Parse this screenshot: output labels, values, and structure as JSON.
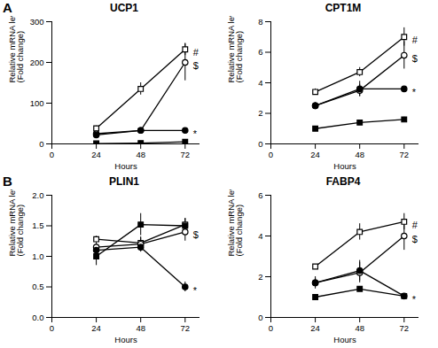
{
  "chart_data": [
    {
      "type": "line",
      "panel": "A",
      "title": "UCP1",
      "xlabel": "Hours",
      "ylabel": "Relative mRNA level\n(Fold change)",
      "x": [
        24,
        48,
        72
      ],
      "xlim": [
        0,
        80
      ],
      "xticks": [
        0,
        24,
        48,
        72
      ],
      "ylim": [
        0,
        300
      ],
      "yticks": [
        0,
        100,
        200,
        300
      ],
      "series": [
        {
          "color": "#000000",
          "marker": "open-square",
          "values": [
            38,
            135,
            232
          ],
          "errors": [
            6,
            15,
            15
          ],
          "annotation": "#"
        },
        {
          "color": "#000000",
          "marker": "open-circle",
          "values": [
            25,
            33,
            200
          ],
          "errors": [
            3,
            4,
            45
          ],
          "annotation": "$"
        },
        {
          "color": "#000000",
          "marker": "circle",
          "values": [
            22,
            33,
            33
          ],
          "errors": [
            3,
            3,
            2
          ],
          "annotation": "*"
        },
        {
          "color": "#000000",
          "marker": "square",
          "values": [
            1,
            2,
            5
          ],
          "errors": [
            0.5,
            1,
            2
          ]
        }
      ]
    },
    {
      "type": "line",
      "title": "CPT1M",
      "xlabel": "Hours",
      "ylabel": "Relative mRNA level\n(Fold change)",
      "x": [
        24,
        48,
        72
      ],
      "xlim": [
        0,
        80
      ],
      "xticks": [
        0,
        24,
        48,
        72
      ],
      "ylim": [
        0,
        8
      ],
      "yticks": [
        0,
        2,
        4,
        6,
        8
      ],
      "series": [
        {
          "color": "#000000",
          "marker": "open-square",
          "values": [
            3.4,
            4.7,
            7.0
          ],
          "errors": [
            0.2,
            0.3,
            0.6
          ],
          "annotation": "#"
        },
        {
          "color": "#000000",
          "marker": "open-circle",
          "values": [
            2.5,
            3.5,
            5.8
          ],
          "errors": [
            0.15,
            0.4,
            0.9
          ],
          "annotation": "$"
        },
        {
          "color": "#000000",
          "marker": "circle",
          "values": [
            2.5,
            3.6,
            3.6
          ],
          "errors": [
            0.2,
            0.5,
            0.05
          ],
          "annotation": "*"
        },
        {
          "color": "#000000",
          "marker": "square",
          "values": [
            1.0,
            1.4,
            1.6
          ],
          "errors": [
            0.05,
            0.1,
            0.15
          ]
        }
      ]
    },
    {
      "type": "line",
      "panel": "B",
      "title": "PLIN1",
      "xlabel": "Hours",
      "ylabel": "Relative mRNA level\n(Fold change)",
      "x": [
        24,
        48,
        72
      ],
      "xlim": [
        0,
        80
      ],
      "xticks": [
        0,
        24,
        48,
        72
      ],
      "ylim": [
        0,
        2.0
      ],
      "yticks": [
        {
          "value": 0,
          "label": "0.0"
        },
        0.5,
        {
          "value": 1,
          "label": "1.0"
        },
        1.5,
        {
          "value": 2,
          "label": "2.0"
        }
      ],
      "series": [
        {
          "color": "#000000",
          "marker": "open-square",
          "values": [
            1.28,
            1.22,
            1.52
          ],
          "errors": [
            0.05,
            0.1,
            0.1
          ]
        },
        {
          "color": "#000000",
          "marker": "open-circle",
          "values": [
            1.15,
            1.2,
            1.4
          ],
          "errors": [
            0.08,
            0.1,
            0.15
          ],
          "annotation": "$"
        },
        {
          "color": "#000000",
          "marker": "circle",
          "values": [
            1.1,
            1.15,
            0.5
          ],
          "errors": [
            0.08,
            0.08,
            0.08
          ],
          "annotation": "*"
        },
        {
          "color": "#000000",
          "marker": "square",
          "values": [
            1.0,
            1.52,
            1.5
          ],
          "errors": [
            0.15,
            0.18,
            0.12
          ]
        }
      ]
    },
    {
      "type": "line",
      "title": "FABP4",
      "xlabel": "Hours",
      "ylabel": "Relative mRNA level\n(Fold change)",
      "x": [
        24,
        48,
        72
      ],
      "xlim": [
        0,
        80
      ],
      "xticks": [
        0,
        24,
        48,
        72
      ],
      "ylim": [
        0,
        6
      ],
      "yticks": [
        0,
        2,
        4,
        6
      ],
      "series": [
        {
          "color": "#000000",
          "marker": "open-square",
          "values": [
            2.5,
            4.2,
            4.7
          ],
          "errors": [
            0.1,
            0.4,
            0.4
          ],
          "annotation": "#"
        },
        {
          "color": "#000000",
          "marker": "open-circle",
          "values": [
            1.7,
            2.2,
            4.0
          ],
          "errors": [
            0.3,
            0.5,
            0.7
          ],
          "annotation": "$"
        },
        {
          "color": "#000000",
          "marker": "circle",
          "values": [
            1.7,
            2.3,
            1.05
          ],
          "errors": [
            0.2,
            0.5,
            0.1
          ],
          "annotation": "*"
        },
        {
          "color": "#000000",
          "marker": "square",
          "values": [
            1.0,
            1.4,
            1.05
          ],
          "errors": [
            0.05,
            0.1,
            0.08
          ]
        }
      ]
    }
  ]
}
